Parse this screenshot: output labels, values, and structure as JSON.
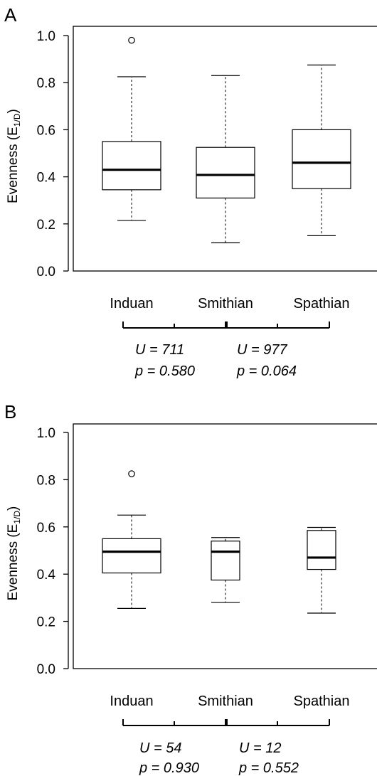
{
  "chart_data": [
    {
      "type": "box",
      "panel": "A",
      "ylabel": "Evenness (E",
      "ylabel_sub": "1/D",
      "ylabel_close": ")",
      "ylim": [
        0.0,
        1.0
      ],
      "yticks": [
        0.0,
        0.2,
        0.4,
        0.6,
        0.8,
        1.0
      ],
      "ytick_labels": [
        "0.0",
        "0.2",
        "0.4",
        "0.6",
        "0.8",
        "1.0"
      ],
      "categories": [
        "Induan",
        "Smithian",
        "Spathian"
      ],
      "boxes": [
        {
          "category": "Induan",
          "whisker_low": 0.215,
          "q1": 0.345,
          "median": 0.43,
          "q3": 0.55,
          "whisker_high": 0.825,
          "outliers": [
            0.98
          ]
        },
        {
          "category": "Smithian",
          "whisker_low": 0.12,
          "q1": 0.31,
          "median": 0.408,
          "q3": 0.525,
          "whisker_high": 0.83,
          "outliers": []
        },
        {
          "category": "Spathian",
          "whisker_low": 0.15,
          "q1": 0.35,
          "median": 0.46,
          "q3": 0.6,
          "whisker_high": 0.875,
          "outliers": []
        }
      ],
      "comparisons": [
        {
          "u_label": "U = 711",
          "p_label": "p = 0.580"
        },
        {
          "u_label": "U  = 977",
          "p_label": "p = 0.064"
        }
      ]
    },
    {
      "type": "box",
      "panel": "B",
      "ylabel": "Evenness (E",
      "ylabel_sub": "1/D",
      "ylabel_close": ")",
      "ylim": [
        0.0,
        1.0
      ],
      "yticks": [
        0.0,
        0.2,
        0.4,
        0.6,
        0.8,
        1.0
      ],
      "ytick_labels": [
        "0.0",
        "0.2",
        "0.4",
        "0.6",
        "0.8",
        "1.0"
      ],
      "categories": [
        "Induan",
        "Smithian",
        "Spathian"
      ],
      "boxes": [
        {
          "category": "Induan",
          "whisker_low": 0.255,
          "q1": 0.405,
          "median": 0.495,
          "q3": 0.55,
          "whisker_high": 0.65,
          "outliers": [
            0.825
          ]
        },
        {
          "category": "Smithian",
          "whisker_low": 0.28,
          "q1": 0.375,
          "median": 0.495,
          "q3": 0.54,
          "whisker_high": 0.555,
          "outliers": []
        },
        {
          "category": "Spathian",
          "whisker_low": 0.235,
          "q1": 0.42,
          "median": 0.47,
          "q3": 0.585,
          "whisker_high": 0.598,
          "outliers": []
        }
      ],
      "comparisons": [
        {
          "u_label": "U =  54",
          "p_label": "p = 0.930"
        },
        {
          "u_label": "U  = 12",
          "p_label": "p = 0.552"
        }
      ]
    }
  ]
}
